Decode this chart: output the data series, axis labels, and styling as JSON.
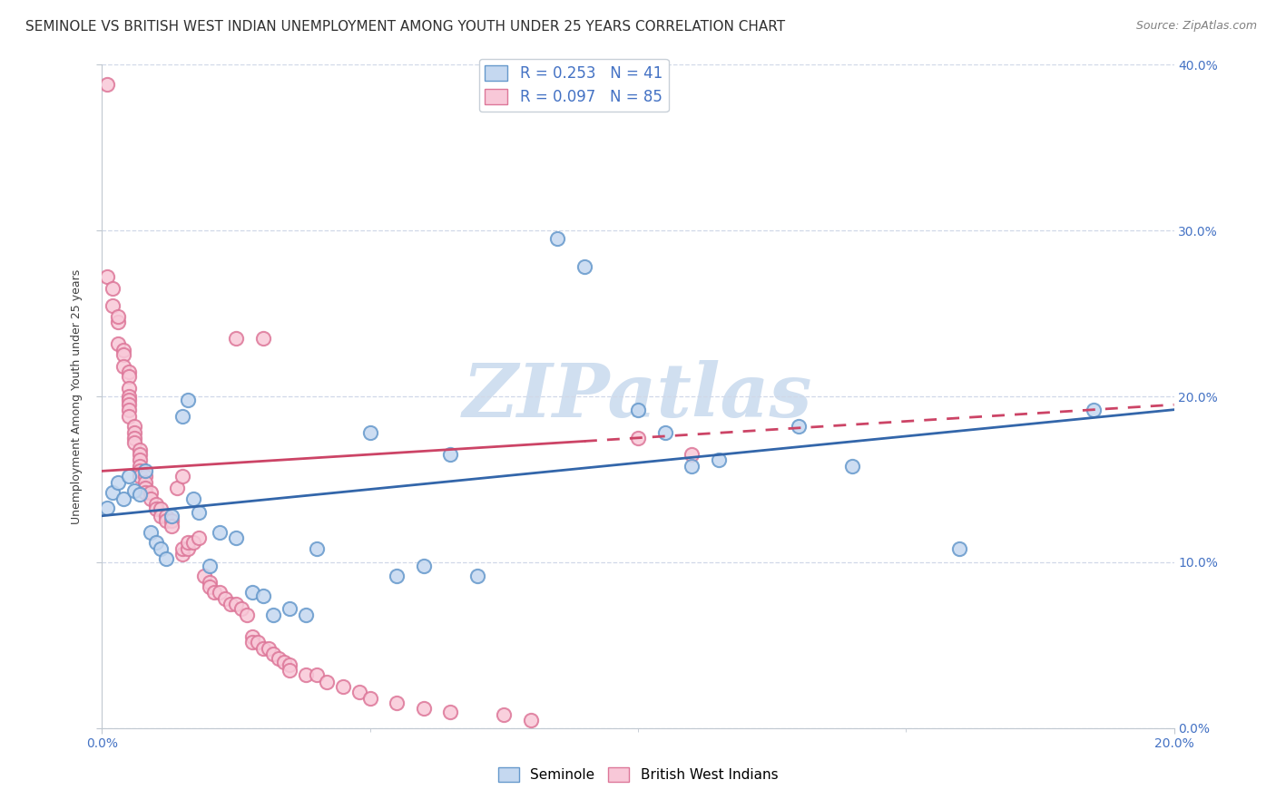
{
  "title": "SEMINOLE VS BRITISH WEST INDIAN UNEMPLOYMENT AMONG YOUTH UNDER 25 YEARS CORRELATION CHART",
  "source": "Source: ZipAtlas.com",
  "ylabel": "Unemployment Among Youth under 25 years",
  "series": [
    {
      "name": "Seminole",
      "R": 0.253,
      "N": 41,
      "face_color": "#c5d8f0",
      "edge_color": "#6699cc",
      "line_color": "#3366aa",
      "trend_y0": 0.128,
      "trend_y1": 0.192
    },
    {
      "name": "British West Indians",
      "R": 0.097,
      "N": 85,
      "face_color": "#f8c8d8",
      "edge_color": "#dd7799",
      "line_color": "#cc4466",
      "trend_y0": 0.155,
      "trend_y1": 0.195
    }
  ],
  "seminole_points": [
    [
      0.001,
      0.133
    ],
    [
      0.002,
      0.142
    ],
    [
      0.003,
      0.148
    ],
    [
      0.004,
      0.138
    ],
    [
      0.005,
      0.152
    ],
    [
      0.006,
      0.143
    ],
    [
      0.007,
      0.141
    ],
    [
      0.008,
      0.155
    ],
    [
      0.009,
      0.118
    ],
    [
      0.01,
      0.112
    ],
    [
      0.011,
      0.108
    ],
    [
      0.012,
      0.102
    ],
    [
      0.013,
      0.128
    ],
    [
      0.015,
      0.188
    ],
    [
      0.016,
      0.198
    ],
    [
      0.017,
      0.138
    ],
    [
      0.018,
      0.13
    ],
    [
      0.02,
      0.098
    ],
    [
      0.022,
      0.118
    ],
    [
      0.025,
      0.115
    ],
    [
      0.028,
      0.082
    ],
    [
      0.03,
      0.08
    ],
    [
      0.032,
      0.068
    ],
    [
      0.035,
      0.072
    ],
    [
      0.038,
      0.068
    ],
    [
      0.04,
      0.108
    ],
    [
      0.05,
      0.178
    ],
    [
      0.055,
      0.092
    ],
    [
      0.06,
      0.098
    ],
    [
      0.065,
      0.165
    ],
    [
      0.07,
      0.092
    ],
    [
      0.085,
      0.295
    ],
    [
      0.09,
      0.278
    ],
    [
      0.1,
      0.192
    ],
    [
      0.105,
      0.178
    ],
    [
      0.11,
      0.158
    ],
    [
      0.115,
      0.162
    ],
    [
      0.13,
      0.182
    ],
    [
      0.14,
      0.158
    ],
    [
      0.16,
      0.108
    ],
    [
      0.185,
      0.192
    ]
  ],
  "bwi_points": [
    [
      0.001,
      0.388
    ],
    [
      0.001,
      0.272
    ],
    [
      0.002,
      0.265
    ],
    [
      0.002,
      0.255
    ],
    [
      0.003,
      0.245
    ],
    [
      0.003,
      0.248
    ],
    [
      0.003,
      0.232
    ],
    [
      0.004,
      0.228
    ],
    [
      0.004,
      0.225
    ],
    [
      0.004,
      0.218
    ],
    [
      0.005,
      0.215
    ],
    [
      0.005,
      0.212
    ],
    [
      0.005,
      0.205
    ],
    [
      0.005,
      0.2
    ],
    [
      0.005,
      0.198
    ],
    [
      0.005,
      0.195
    ],
    [
      0.005,
      0.192
    ],
    [
      0.005,
      0.188
    ],
    [
      0.006,
      0.182
    ],
    [
      0.006,
      0.178
    ],
    [
      0.006,
      0.175
    ],
    [
      0.006,
      0.172
    ],
    [
      0.007,
      0.168
    ],
    [
      0.007,
      0.165
    ],
    [
      0.007,
      0.162
    ],
    [
      0.007,
      0.158
    ],
    [
      0.007,
      0.155
    ],
    [
      0.007,
      0.152
    ],
    [
      0.008,
      0.152
    ],
    [
      0.008,
      0.148
    ],
    [
      0.008,
      0.145
    ],
    [
      0.008,
      0.142
    ],
    [
      0.009,
      0.142
    ],
    [
      0.009,
      0.138
    ],
    [
      0.01,
      0.135
    ],
    [
      0.01,
      0.132
    ],
    [
      0.011,
      0.132
    ],
    [
      0.011,
      0.128
    ],
    [
      0.012,
      0.128
    ],
    [
      0.012,
      0.125
    ],
    [
      0.013,
      0.125
    ],
    [
      0.013,
      0.122
    ],
    [
      0.014,
      0.145
    ],
    [
      0.015,
      0.152
    ],
    [
      0.015,
      0.105
    ],
    [
      0.015,
      0.108
    ],
    [
      0.016,
      0.108
    ],
    [
      0.016,
      0.112
    ],
    [
      0.017,
      0.112
    ],
    [
      0.018,
      0.115
    ],
    [
      0.019,
      0.092
    ],
    [
      0.02,
      0.088
    ],
    [
      0.02,
      0.085
    ],
    [
      0.021,
      0.082
    ],
    [
      0.022,
      0.082
    ],
    [
      0.023,
      0.078
    ],
    [
      0.024,
      0.075
    ],
    [
      0.025,
      0.075
    ],
    [
      0.026,
      0.072
    ],
    [
      0.027,
      0.068
    ],
    [
      0.028,
      0.055
    ],
    [
      0.028,
      0.052
    ],
    [
      0.029,
      0.052
    ],
    [
      0.03,
      0.048
    ],
    [
      0.031,
      0.048
    ],
    [
      0.032,
      0.045
    ],
    [
      0.033,
      0.042
    ],
    [
      0.034,
      0.04
    ],
    [
      0.035,
      0.038
    ],
    [
      0.035,
      0.035
    ],
    [
      0.038,
      0.032
    ],
    [
      0.04,
      0.032
    ],
    [
      0.042,
      0.028
    ],
    [
      0.045,
      0.025
    ],
    [
      0.048,
      0.022
    ],
    [
      0.05,
      0.018
    ],
    [
      0.055,
      0.015
    ],
    [
      0.06,
      0.012
    ],
    [
      0.065,
      0.01
    ],
    [
      0.075,
      0.008
    ],
    [
      0.08,
      0.005
    ],
    [
      0.025,
      0.235
    ],
    [
      0.03,
      0.235
    ],
    [
      0.1,
      0.175
    ],
    [
      0.11,
      0.165
    ]
  ],
  "xlim": [
    0.0,
    0.2
  ],
  "ylim": [
    0.0,
    0.4
  ],
  "yticks": [
    0.0,
    0.1,
    0.2,
    0.3,
    0.4
  ],
  "ytick_labels": [
    "0.0%",
    "10.0%",
    "20.0%",
    "30.0%",
    "40.0%"
  ],
  "xtick_labels_shown": [
    "0.0%",
    "20.0%"
  ],
  "xtick_pos_shown": [
    0.0,
    0.2
  ],
  "watermark": "ZIPatlas",
  "watermark_color": "#d0dff0",
  "background_color": "#ffffff",
  "grid_color": "#d0d8e8",
  "title_color": "#303030",
  "title_fontsize": 11,
  "axis_label_fontsize": 9,
  "tick_fontsize": 10,
  "legend_fontsize": 12,
  "marker_size": 120,
  "marker_linewidth": 1.5,
  "trend_linewidth": 2.0
}
